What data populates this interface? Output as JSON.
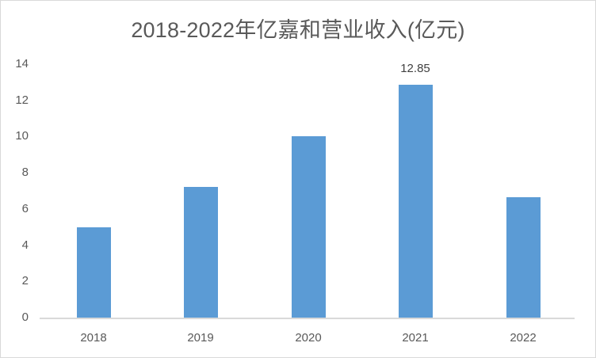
{
  "chart": {
    "title": "2018-2022年亿嘉和营业收入(亿元)",
    "y_ticks": [
      "0",
      "2",
      "4",
      "6",
      "8",
      "10",
      "12",
      "14"
    ],
    "x_ticks": [
      "2018",
      "2019",
      "2020",
      "2021",
      "2022"
    ],
    "data_labels": {
      "2021": "12.85"
    }
  },
  "colors": {
    "bar": "#5b9bd5",
    "axis": "#d9d9d9",
    "text": "#595959"
  },
  "chart_data": {
    "type": "bar",
    "title": "2018-2022年亿嘉和营业收入(亿元)",
    "categories": [
      "2018",
      "2019",
      "2020",
      "2021",
      "2022"
    ],
    "values": [
      5.0,
      7.2,
      10.0,
      12.85,
      6.65
    ],
    "labeled_values": {
      "2021": 12.85
    },
    "xlabel": "",
    "ylabel": "",
    "ylim": [
      0,
      14
    ],
    "yticks": [
      0,
      2,
      4,
      6,
      8,
      10,
      12,
      14
    ],
    "grid": false,
    "legend": null,
    "series": [
      {
        "name": "营业收入(亿元)",
        "values": [
          5.0,
          7.2,
          10.0,
          12.85,
          6.65
        ],
        "color": "#5b9bd5"
      }
    ]
  }
}
